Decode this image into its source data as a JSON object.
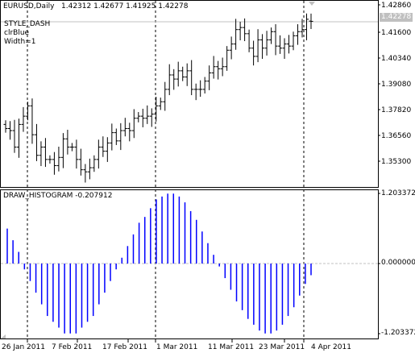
{
  "main_panel": {
    "symbol": "EURUSD,Daily",
    "ohlc": "1.42312 1.42677 1.41925 1.42278",
    "style_lines": [
      "STYLE_DASH",
      "clrBlue",
      "Width=1"
    ],
    "price_ticks": [
      "1.42860",
      "1.41600",
      "1.40340",
      "1.39080",
      "1.37820",
      "1.36560",
      "1.35300"
    ],
    "current_price": "1.42278"
  },
  "indicator_panel": {
    "label": "DRAW_HISTOGRAM -0.207912",
    "ticks": [
      "1.203372",
      "0.000000",
      "-1.203372"
    ]
  },
  "time_axis": {
    "labels": [
      "26 Jan 2011",
      "7 Feb 2011",
      "17 Feb 2011",
      "1 Mar 2011",
      "11 Mar 2011",
      "23 Mar 2011",
      "4 Apr 2011"
    ]
  },
  "colors": {
    "bars": "#000000",
    "histogram": "#0000ff",
    "grid_dash": "#000000",
    "current_price_line": "#c0c0c0",
    "zero_line": "#c0c0c0"
  },
  "chart_data": [
    {
      "type": "ohlc",
      "title": "EURUSD,Daily",
      "ylim": [
        1.345,
        1.431
      ],
      "y_ticks": [
        1.4286,
        1.416,
        1.4034,
        1.3908,
        1.3782,
        1.3656,
        1.353
      ],
      "x_labels": [
        "26 Jan 2011",
        "7 Feb 2011",
        "17 Feb 2011",
        "1 Mar 2011",
        "11 Mar 2011",
        "23 Mar 2011",
        "4 Apr 2011"
      ],
      "last": {
        "open": 1.42312,
        "high": 1.42677,
        "low": 1.41925,
        "close": 1.42278
      },
      "close": [
        1.371,
        1.37,
        1.362,
        1.373,
        1.377,
        1.382,
        1.368,
        1.358,
        1.362,
        1.356,
        1.356,
        1.353,
        1.357,
        1.366,
        1.362,
        1.362,
        1.356,
        1.351,
        1.35,
        1.352,
        1.356,
        1.362,
        1.36,
        1.364,
        1.369,
        1.365,
        1.37,
        1.371,
        1.37,
        1.376,
        1.377,
        1.376,
        1.377,
        1.378,
        1.382,
        1.384,
        1.39,
        1.397,
        1.395,
        1.399,
        1.396,
        1.399,
        1.39,
        1.39,
        1.39,
        1.394,
        1.398,
        1.401,
        1.4,
        1.401,
        1.409,
        1.412,
        1.419,
        1.42,
        1.417,
        1.41,
        1.406,
        1.414,
        1.41,
        1.414,
        1.418,
        1.411,
        1.41,
        1.412,
        1.411,
        1.416,
        1.418,
        1.419,
        1.424,
        1.423
      ]
    },
    {
      "type": "bar",
      "title": "DRAW_HISTOGRAM -0.207912",
      "ylim": [
        -1.203372,
        1.203372
      ],
      "values": [
        0.6,
        0.4,
        0.2,
        -0.1,
        -0.3,
        -0.5,
        -0.7,
        -0.9,
        -1.0,
        -1.1,
        -1.2,
        -1.2,
        -1.2,
        -1.1,
        -1.0,
        -0.9,
        -0.7,
        -0.5,
        -0.3,
        -0.1,
        0.1,
        0.3,
        0.5,
        0.7,
        0.8,
        0.95,
        1.1,
        1.15,
        1.2,
        1.2,
        1.15,
        1.05,
        0.9,
        0.75,
        0.55,
        0.35,
        0.15,
        -0.05,
        -0.25,
        -0.45,
        -0.65,
        -0.8,
        -0.95,
        -1.05,
        -1.15,
        -1.2,
        -1.2,
        -1.15,
        -1.05,
        -0.9,
        -0.75,
        -0.55,
        -0.35,
        -0.2
      ]
    }
  ]
}
